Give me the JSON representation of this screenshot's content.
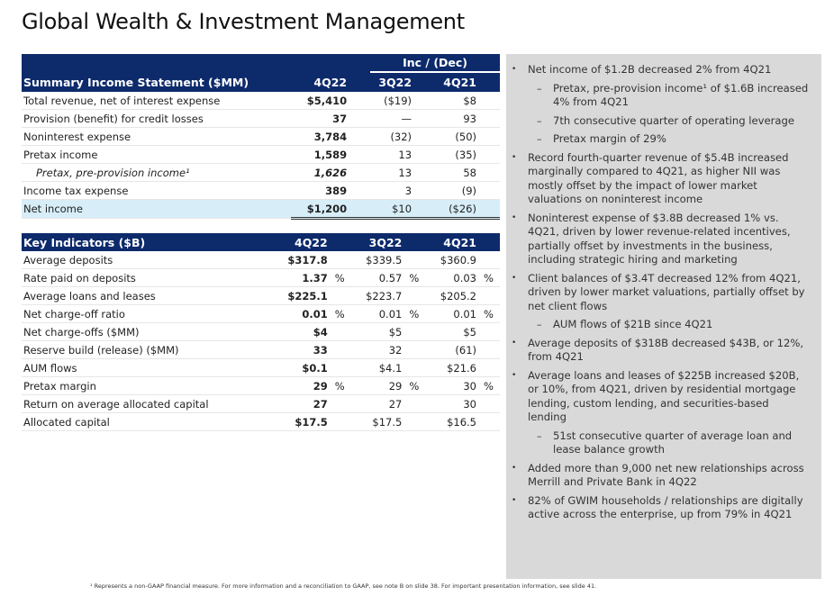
{
  "title": "Global Wealth & Investment Management",
  "income": {
    "group_header": "Inc / (Dec)",
    "header": [
      "Summary Income Statement ($MM)",
      "4Q22",
      "3Q22",
      "4Q21"
    ],
    "rows": [
      [
        "Total revenue, net of interest expense",
        "$5,410",
        "($19)",
        "$8"
      ],
      [
        "Provision (benefit) for credit losses",
        "37",
        "—",
        "93"
      ],
      [
        "Noninterest expense",
        "3,784",
        "(32)",
        "(50)"
      ],
      [
        "Pretax income",
        "1,589",
        "13",
        "(35)"
      ],
      [
        "Pretax, pre-provision income¹",
        "1,626",
        "13",
        "58"
      ],
      [
        "Income tax expense",
        "389",
        "3",
        "(9)"
      ],
      [
        "Net income",
        "$1,200",
        "$10",
        "($26)"
      ]
    ]
  },
  "indicators": {
    "header": [
      "Key Indicators ($B)",
      "4Q22",
      "3Q22",
      "4Q21"
    ],
    "rows": [
      [
        "Average deposits",
        "$317.8",
        "",
        "$339.5",
        "",
        "$360.9",
        ""
      ],
      [
        "Rate paid on deposits",
        "1.37",
        "%",
        "0.57",
        "%",
        "0.03",
        "%"
      ],
      [
        "Average loans and leases",
        "$225.1",
        "",
        "$223.7",
        "",
        "$205.2",
        ""
      ],
      [
        "Net charge-off ratio",
        "0.01",
        "%",
        "0.01",
        "%",
        "0.01",
        "%"
      ],
      [
        "Net charge-offs ($MM)",
        "$4",
        "",
        "$5",
        "",
        "$5",
        ""
      ],
      [
        "Reserve build (release) ($MM)",
        "33",
        "",
        "32",
        "",
        "(61)",
        ""
      ],
      [
        "AUM flows",
        "$0.1",
        "",
        "$4.1",
        "",
        "$21.6",
        ""
      ],
      [
        "Pretax margin",
        "29",
        "%",
        "29",
        "%",
        "30",
        "%"
      ],
      [
        "Return on average allocated capital",
        "27",
        "",
        "27",
        "",
        "30",
        ""
      ],
      [
        "Allocated capital",
        "$17.5",
        "",
        "$17.5",
        "",
        "$16.5",
        ""
      ]
    ]
  },
  "bullets": [
    {
      "t": "Net income of $1.2B decreased 2% from 4Q21",
      "sub": false
    },
    {
      "t": "Pretax, pre-provision income¹ of $1.6B increased 4% from 4Q21",
      "sub": true
    },
    {
      "t": "7th consecutive quarter of operating leverage",
      "sub": true
    },
    {
      "t": "Pretax margin of 29%",
      "sub": true
    },
    {
      "t": "Record fourth-quarter revenue of $5.4B increased marginally compared to 4Q21, as higher NII was mostly offset by the impact of lower market valuations on noninterest income",
      "sub": false
    },
    {
      "t": "Noninterest expense of $3.8B decreased 1% vs. 4Q21, driven by lower revenue-related incentives, partially offset by investments in the business, including strategic hiring and marketing",
      "sub": false
    },
    {
      "t": "Client balances of $3.4T decreased 12% from 4Q21, driven by lower market valuations, partially offset by net client flows",
      "sub": false
    },
    {
      "t": "AUM flows of $21B since 4Q21",
      "sub": true
    },
    {
      "t": "Average deposits of $318B decreased $43B, or 12%, from 4Q21",
      "sub": false
    },
    {
      "t": "Average loans and leases of $225B increased $20B, or 10%, from 4Q21, driven by residential mortgage lending, custom lending, and securities-based lending",
      "sub": false
    },
    {
      "t": "51st consecutive quarter of average loan and lease balance growth",
      "sub": true
    },
    {
      "t": "Added more than 9,000 net new relationships across Merrill and Private Bank in 4Q22",
      "sub": false
    },
    {
      "t": "82% of GWIM households / relationships are digitally active across the enterprise, up from 79% in 4Q21",
      "sub": false
    }
  ],
  "footnote": "¹ Represents a non-GAAP financial measure. For more information and a reconciliation to GAAP, see note B on slide 38. For important presentation information, see slide 41."
}
